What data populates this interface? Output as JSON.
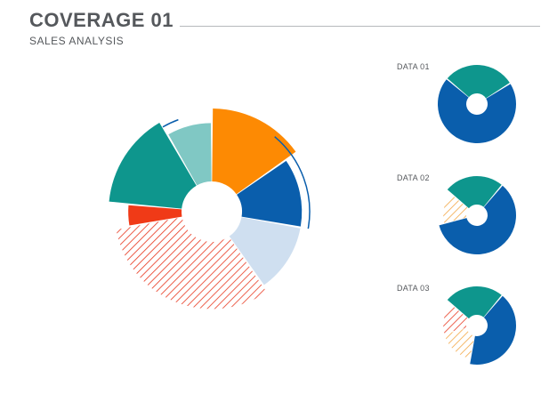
{
  "header": {
    "title": "COVERAGE 01",
    "subtitle": "SALES ANALYSIS"
  },
  "colors": {
    "orange": "#fd8a03",
    "blue": "#0a5eac",
    "light_blue": "#cfdff0",
    "red": "#f03a17",
    "teal": "#0e968d",
    "light_teal": "#80c8c4",
    "hatch_red": "#e8381f",
    "hatch_orange": "#f2a541",
    "outline": "#0a5eac"
  },
  "chart_data": [
    {
      "type": "pie",
      "subtype": "polar-area donut",
      "title": "",
      "segments": [
        {
          "color": "orange",
          "share": 0.153,
          "relative_radius": 1.0,
          "pattern": "solid"
        },
        {
          "color": "blue",
          "share": 0.125,
          "relative_radius": 0.82,
          "pattern": "solid"
        },
        {
          "color": "light_blue",
          "share": 0.125,
          "relative_radius": 0.82,
          "pattern": "solid"
        },
        {
          "color": "red",
          "share": 0.319,
          "relative_radius": 0.92,
          "pattern": "hatched"
        },
        {
          "color": "red",
          "share": 0.042,
          "relative_radius": 0.73,
          "pattern": "solid"
        },
        {
          "color": "teal",
          "share": 0.153,
          "relative_radius": 1.0,
          "pattern": "solid"
        },
        {
          "color": "light_teal",
          "share": 0.083,
          "relative_radius": 0.8,
          "pattern": "solid"
        }
      ]
    },
    {
      "type": "pie",
      "subtype": "donut",
      "label": "DATA 01",
      "segments": [
        {
          "color": "teal",
          "share": 0.3,
          "pattern": "solid"
        },
        {
          "color": "blue",
          "share": 0.7,
          "pattern": "solid"
        }
      ]
    },
    {
      "type": "pie",
      "subtype": "donut",
      "label": "DATA 02",
      "segments": [
        {
          "color": "teal",
          "share": 0.25,
          "pattern": "solid"
        },
        {
          "color": "blue",
          "share": 0.6,
          "pattern": "solid"
        },
        {
          "color": "hatch_orange",
          "share": 0.15,
          "pattern": "hatched"
        }
      ]
    },
    {
      "type": "pie",
      "subtype": "donut",
      "label": "DATA 03",
      "segments": [
        {
          "color": "teal",
          "share": 0.25,
          "pattern": "solid"
        },
        {
          "color": "blue",
          "share": 0.42,
          "pattern": "solid"
        },
        {
          "color": "hatch_orange",
          "share": 0.18,
          "pattern": "hatched"
        },
        {
          "color": "hatch_red",
          "share": 0.15,
          "pattern": "hatched"
        }
      ]
    }
  ]
}
